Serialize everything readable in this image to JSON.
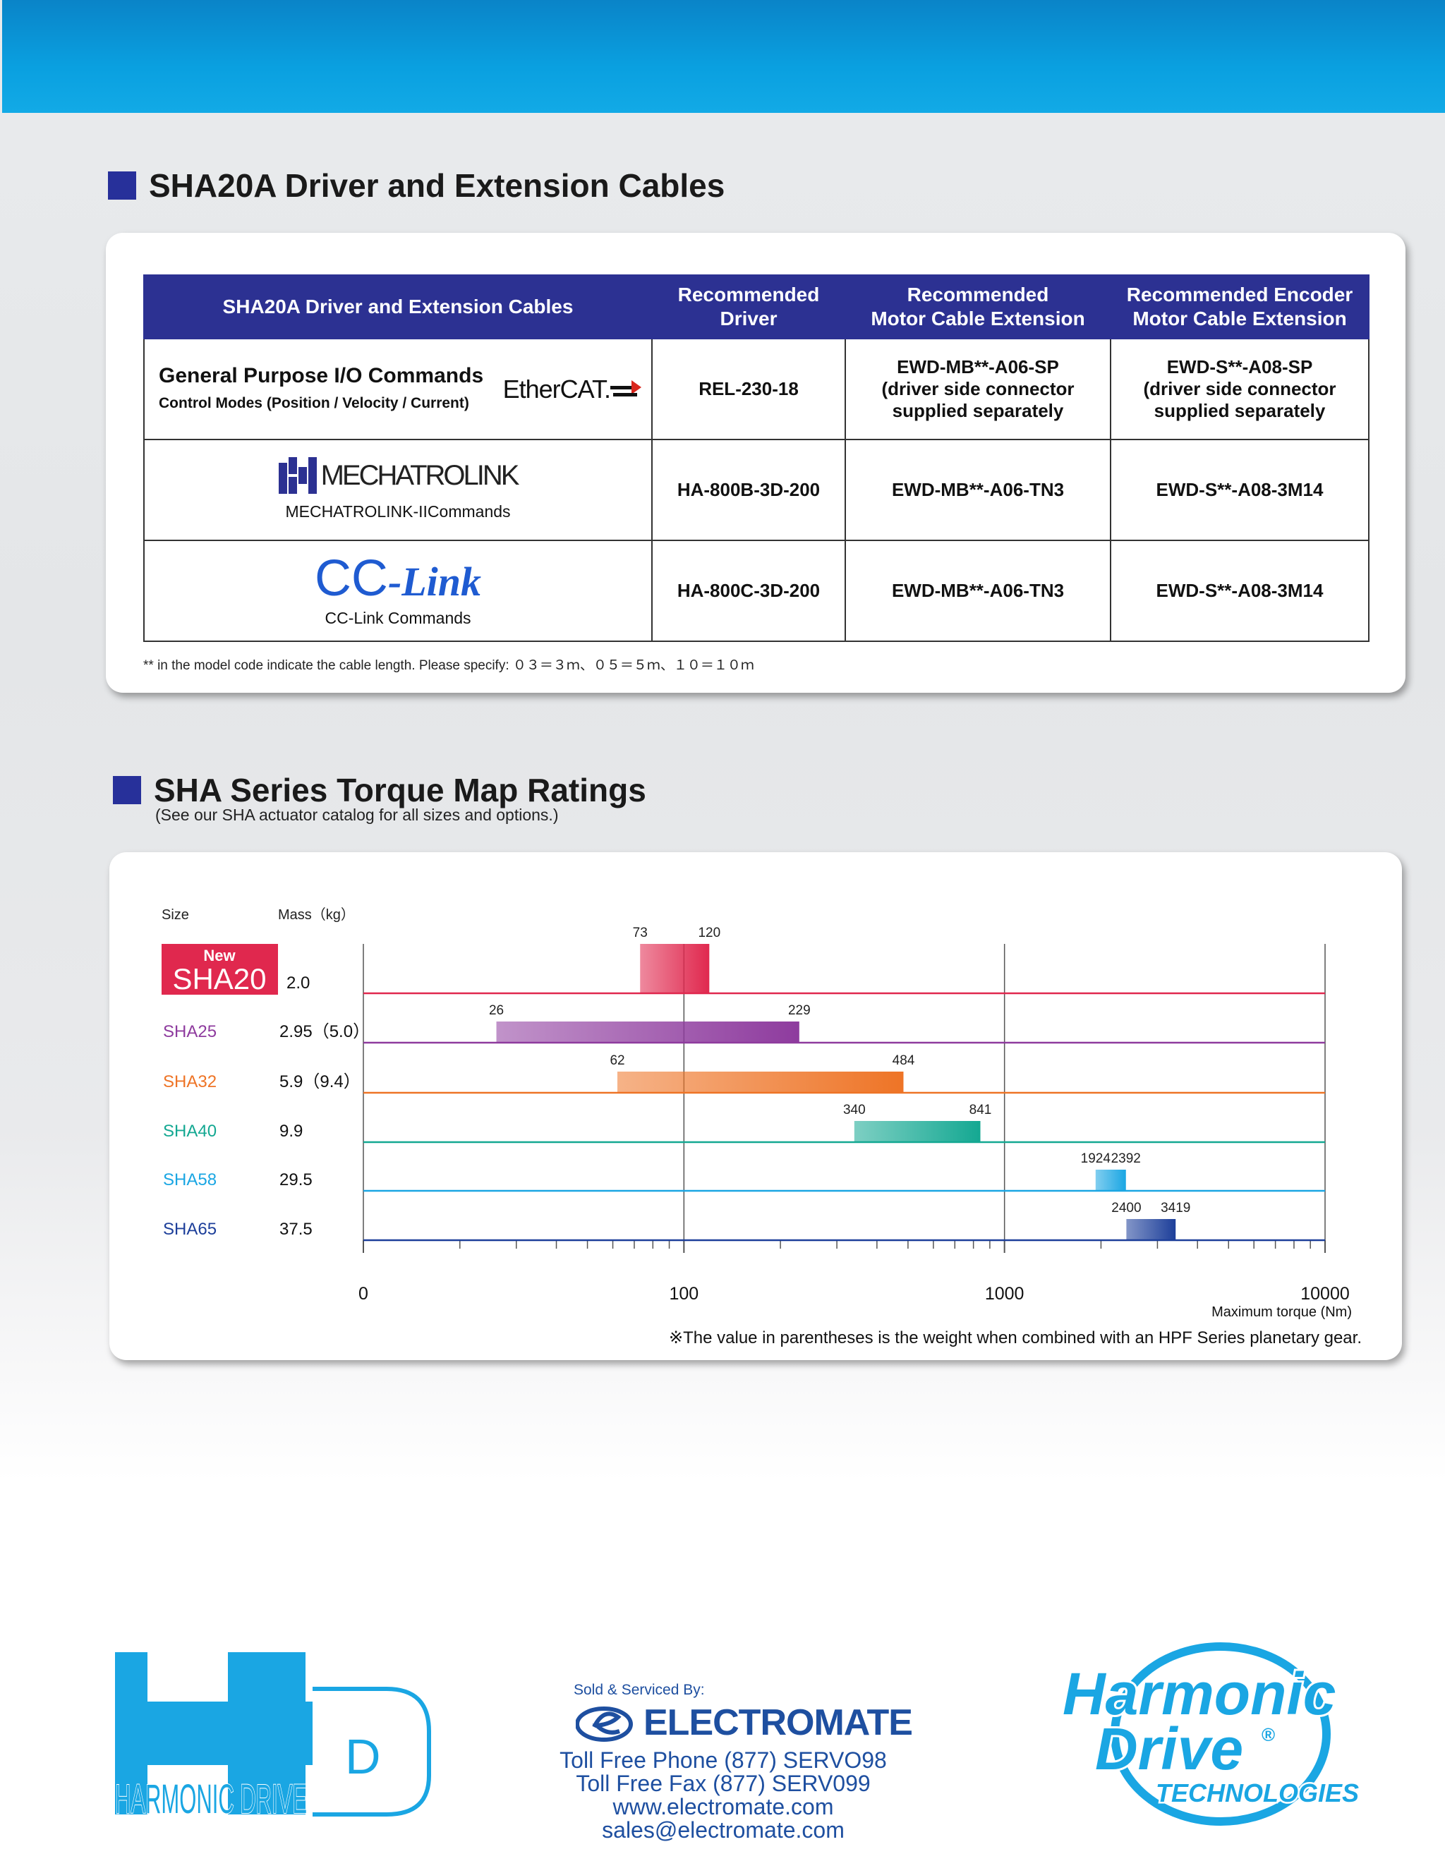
{
  "section1": {
    "title": "SHA20A Driver and Extension Cables",
    "table": {
      "headers": [
        "SHA20A Driver and Extension Cables",
        "Recommended\nDriver",
        "Recommended\nMotor Cable Extension",
        "Recommended Encoder\nMotor Cable Extension"
      ],
      "rows": [
        {
          "title": "General Purpose I/O Commands",
          "subtitle": "Control Modes (Position  / Velocity / Current)",
          "logo": "EtherCAT.",
          "driver": "REL-230-18",
          "motor_cable": "EWD-MB**-A06-SP\n(driver side connector\nsupplied separately",
          "encoder_cable": "EWD-S**-A08-SP\n(driver side connector\nsupplied separately"
        },
        {
          "logo": "MECHATROLINK",
          "subtitle": "MECHATROLINK-IICommands",
          "driver": "HA-800B-3D-200",
          "motor_cable": "EWD-MB**-A06-TN3",
          "encoder_cable": "EWD-S**-A08-3M14"
        },
        {
          "logo_cc": "CC",
          "logo_link": "-Link",
          "subtitle": "CC-Link Commands",
          "driver": "HA-800C-3D-200",
          "motor_cable": "EWD-MB**-A06-TN3",
          "encoder_cable": "EWD-S**-A08-3M14"
        }
      ]
    },
    "footnote": "** in the model code indicate the cable length. Please specify:    ０３＝３ｍ、０５＝５ｍ、１０＝１０ｍ"
  },
  "section2": {
    "title": "SHA Series Torque Map Ratings",
    "subtitle": "(See our SHA actuator catalog for all sizes and options.)",
    "note": "※The value in parentheses is the weight when combined with an HPF Series planetary gear."
  },
  "chart_data": {
    "type": "bar",
    "orientation": "horizontal",
    "scale": "log",
    "xlim": [
      10,
      10000
    ],
    "xticks": [
      "0",
      "100",
      "1000",
      "10000"
    ],
    "xlabel": "Maximum torque (Nm)",
    "col_size_label": "Size",
    "col_mass_label": "Mass（kg）",
    "new_badge": "New",
    "series": [
      {
        "name": "SHA20",
        "mass": "2.0",
        "start": 73,
        "end": 120,
        "color": "#e0284e",
        "new": true
      },
      {
        "name": "SHA25",
        "mass": "2.95（5.0）",
        "start": 26,
        "end": 229,
        "color": "#8e3b9e"
      },
      {
        "name": "SHA32",
        "mass": "5.9（9.4）",
        "start": 62,
        "end": 484,
        "color": "#ee7426"
      },
      {
        "name": "SHA40",
        "mass": "9.9",
        "start": 340,
        "end": 841,
        "color": "#14a892"
      },
      {
        "name": "SHA58",
        "mass": "29.5",
        "start": 1924,
        "end": 2392,
        "color": "#1aa6e3"
      },
      {
        "name": "SHA65",
        "mass": "37.5",
        "start": 2400,
        "end": 3419,
        "color": "#1d3f9a"
      }
    ]
  },
  "footer": {
    "hd_logo_text": "HARMONIC DRIVE",
    "hd_logo_letter": "D",
    "sold_by": "Sold & Serviced By:",
    "electromate": "ELECTROMATE",
    "phone": "Toll Free Phone  (877) SERVO98",
    "fax": "Toll Free Fax  (877) SERV099",
    "web": "www.electromate.com",
    "email": "sales@electromate.com",
    "hdt_line1": "Harmonic",
    "hdt_line2": "Drive",
    "hdt_reg": "®",
    "hdt_line3": "TECHNOLOGIES"
  },
  "colors": {
    "header_blue": "#2c3192",
    "top_band": "#0aa0e0",
    "brand_cyan": "#1aa6e3"
  }
}
